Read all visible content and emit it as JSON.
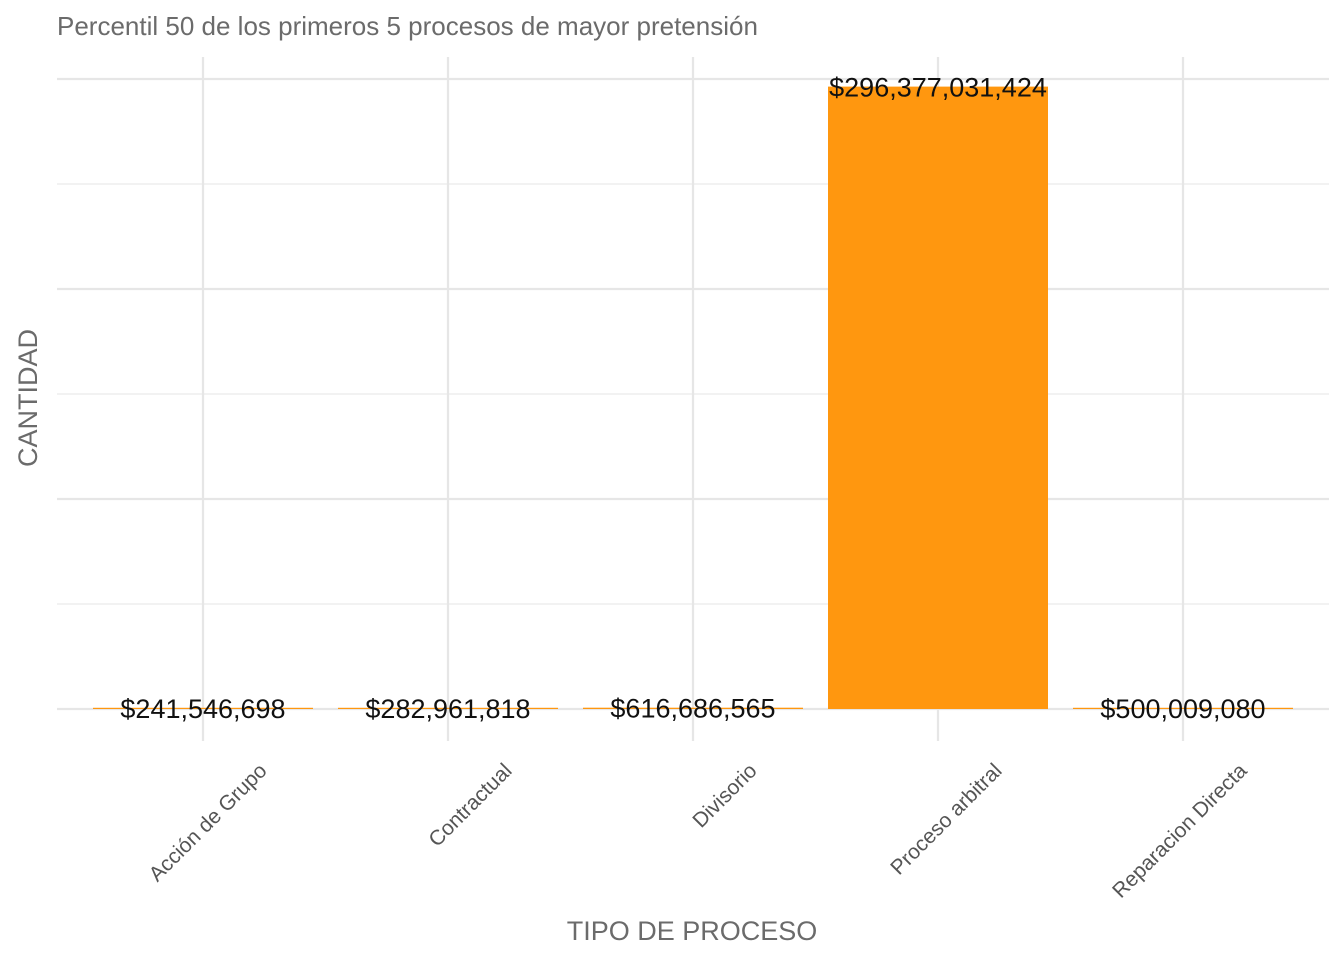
{
  "chart_data": {
    "type": "bar",
    "title": "Percentil 50 de los primeros 5 procesos de mayor pretensión",
    "xlabel": "TIPO DE PROCESO",
    "ylabel": "CANTIDAD",
    "categories": [
      "Acción de Grupo",
      "Contractual",
      "Divisorio",
      "Proceso arbitral",
      "Reparacion Directa"
    ],
    "values": [
      241546698,
      282961818,
      616686565,
      296377031424,
      500009080
    ],
    "data_labels": [
      "$241,546,698",
      "$282,961,818",
      "$616,686,565",
      "$296,377,031,424",
      "$500,009,080"
    ],
    "ylim": [
      0,
      300000000000
    ],
    "y_tick_labels_shown": false,
    "grid": true,
    "bar_color": "#FF970F",
    "legend": "none"
  }
}
